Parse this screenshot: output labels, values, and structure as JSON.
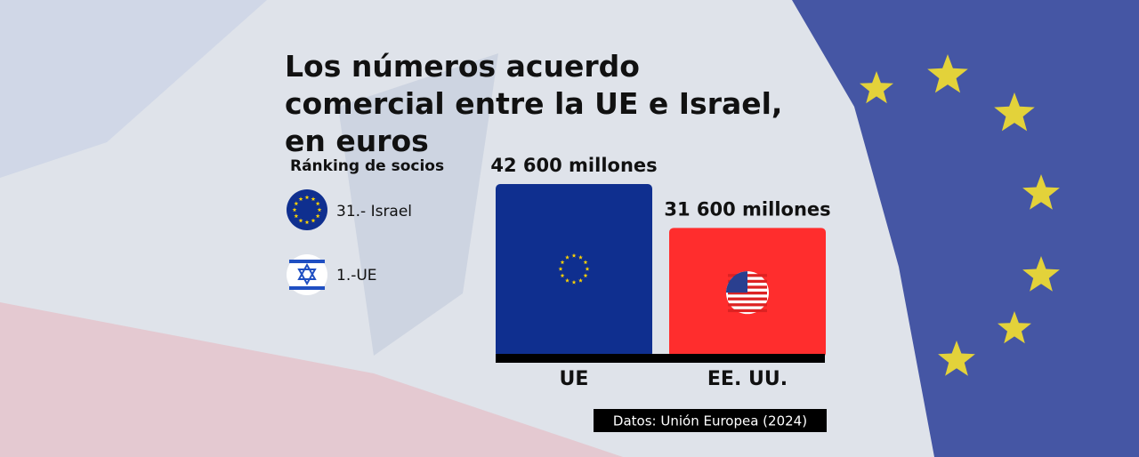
{
  "chart_data": {
    "type": "bar",
    "title": "Los números acuerdo comercial entre la UE e Israel, en euros",
    "categories": [
      "UE",
      "EE. UU."
    ],
    "values": [
      42600,
      31600
    ],
    "value_labels": [
      "42 600 millones",
      "31 600 millones"
    ],
    "colors": [
      "#0f2f8f",
      "#ff2d2d"
    ],
    "source": "Datos: Unión Europea (2024)"
  },
  "ranking": {
    "title": "Ránking de socios",
    "items": [
      "31.- Israel",
      "1.-UE"
    ]
  }
}
